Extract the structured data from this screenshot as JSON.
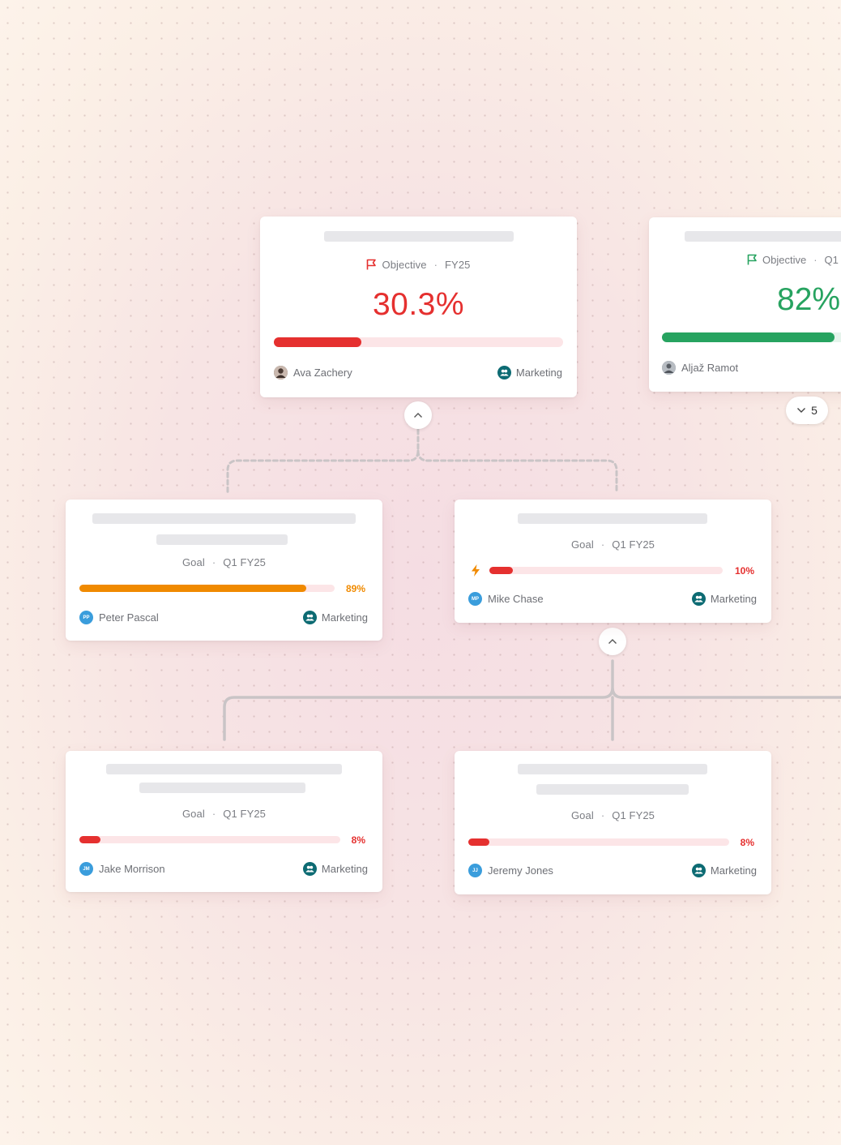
{
  "colors": {
    "red": "#e5302f",
    "green": "#27a360",
    "orange": "#f08a00",
    "track_pink": "#fce5e7",
    "team_teal": "#0d6b73",
    "avatar_blue": "#3a9ddc",
    "connector": "#c9c4c6"
  },
  "objective_main": {
    "type_label": "Objective",
    "period": "FY25",
    "percent": "30.3%",
    "progress": 0.303,
    "owner": "Ava Zachery",
    "team": "Marketing",
    "icon": "flag-icon"
  },
  "objective_side": {
    "type_label": "Objective",
    "period": "Q1",
    "percent": "82%",
    "progress": 0.82,
    "owner": "Aljaž Ramot",
    "icon": "flag-icon",
    "collapsed_count": "5"
  },
  "goals": [
    {
      "type_label": "Goal",
      "period": "Q1 FY25",
      "percent": "89%",
      "progress": 0.89,
      "initials": "PP",
      "owner": "Peter Pascal",
      "team": "Marketing"
    },
    {
      "type_label": "Goal",
      "period": "Q1 FY25",
      "percent": "10%",
      "progress": 0.1,
      "initials": "MP",
      "owner": "Mike Chase",
      "team": "Marketing",
      "icon": "lightning-icon"
    },
    {
      "type_label": "Goal",
      "period": "Q1 FY25",
      "percent": "8%",
      "progress": 0.08,
      "initials": "JM",
      "owner": "Jake Morrison",
      "team": "Marketing"
    },
    {
      "type_label": "Goal",
      "period": "Q1 FY25",
      "percent": "8%",
      "progress": 0.08,
      "initials": "JJ",
      "owner": "Jeremy Jones",
      "team": "Marketing"
    }
  ]
}
